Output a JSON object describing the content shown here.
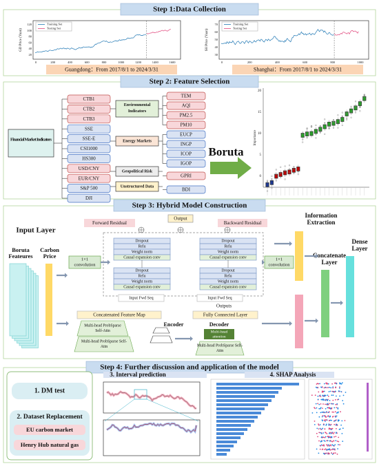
{
  "step1": {
    "title": "Step 1:Data Collection",
    "panels": [
      {
        "y_label": "GD Price (Yuan)",
        "legend": [
          "Training Set",
          "Testing Set"
        ],
        "x_ticks": [
          "0",
          "200",
          "400",
          "600",
          "800",
          "1000",
          "1200",
          "1400",
          "1600"
        ],
        "y_ticks": [
          "20",
          "40",
          "60",
          "80",
          "100",
          "120"
        ],
        "caption": "Guangdong：From 2017/8/1 to 2024/3/31"
      },
      {
        "y_label": "SH Price (Yuan)",
        "legend": [
          "Training Set",
          "Testing Set"
        ],
        "x_ticks": [
          "0",
          "200",
          "400",
          "600",
          "800",
          "1000"
        ],
        "y_ticks": [
          "30",
          "40",
          "50",
          "60",
          "70"
        ],
        "caption": "Shanghai：From 2017/8/1 to 2024/3/31"
      }
    ]
  },
  "step2": {
    "title": "Step 2: Feature Selection",
    "root": "Financial Market Indicators",
    "financial": [
      "CTB1",
      "CTB2",
      "CTB3",
      "SSE",
      "SSE-E",
      "CSI1000",
      "HS300",
      "USD/CNY",
      "EUR/CNY",
      "S&P 500",
      "DJI"
    ],
    "groups": [
      {
        "label": "Environmental Indicators",
        "items": [
          "TEM",
          "AQI",
          "PM2.5",
          "PM10"
        ]
      },
      {
        "label": "Energy Markets",
        "items": [
          "EUCP",
          "INGP",
          "ICOP",
          "IGOP"
        ]
      },
      {
        "label": "Geopolitical Risk",
        "items": [
          "GPRI"
        ]
      },
      {
        "label": "Unstructured Data",
        "items": [
          "BDI"
        ]
      }
    ],
    "method": "Boruta",
    "plot_y_label": "Importance",
    "plot_y_ticks": [
      "0",
      "5",
      "10",
      "15",
      "20"
    ]
  },
  "step3": {
    "title": "Step 3: Hybrid Model Construction",
    "input_layer": "Input Layer",
    "features": [
      "Boruta",
      "Feateures"
    ],
    "carbon_price": [
      "Carbon",
      "Price"
    ],
    "forward_residual": "Forward Residual",
    "backward_residual": "Backward Residual",
    "output": "Output",
    "conv_left": [
      "1×1",
      "convolution"
    ],
    "conv_right": [
      "1×1",
      "convolution"
    ],
    "tcn_left": {
      "upper": [
        "Dropout",
        "Relu",
        "Weight norm",
        "Causal expansion conv"
      ],
      "lower": [
        "Dropout",
        "Relu",
        "Weight norm",
        "Causal expansion conv"
      ]
    },
    "tcn_right": {
      "upper": [
        "Dropout",
        "Relu",
        "Weight norm",
        "Causal expansion conv"
      ],
      "lower": [
        "Dropout",
        "Relu",
        "Weight norm",
        "Causal expansion conv"
      ]
    },
    "input_seq": [
      "Input Fwd Seq",
      "Input Fwd Seq"
    ],
    "outputs": "Outputs",
    "fully_connected": "Fully Connected Layer",
    "feature_map": "Concatenated Feature Map",
    "encoder": "Encoder",
    "encoder_blocks": [
      [
        "Multi-head ProbSparse",
        "Self-Attn"
      ],
      [
        "Multi-head ProbSparse Self-",
        "Attn"
      ]
    ],
    "decoder": "Decoder",
    "decoder_attention": [
      "Multi-head",
      "attention"
    ],
    "decoder_block": [
      "Multi-head ProbSparse Self-",
      "Attn"
    ],
    "information_extraction": [
      "Information",
      "Extraction"
    ],
    "concatenate_layer": [
      "Concatenate",
      "Layer"
    ],
    "dense_layer": [
      "Dense",
      "Layer"
    ]
  },
  "step4": {
    "title": "Step 4: Further discussion and application of the model",
    "dm_test": "1. DM test",
    "replacement": "2. Dataset Replacement",
    "datasets": [
      "EU carbon market",
      "Henry Hub natural gas"
    ],
    "interval": "3. Interval prediction",
    "shap": "4. SHAP Analysis"
  }
}
